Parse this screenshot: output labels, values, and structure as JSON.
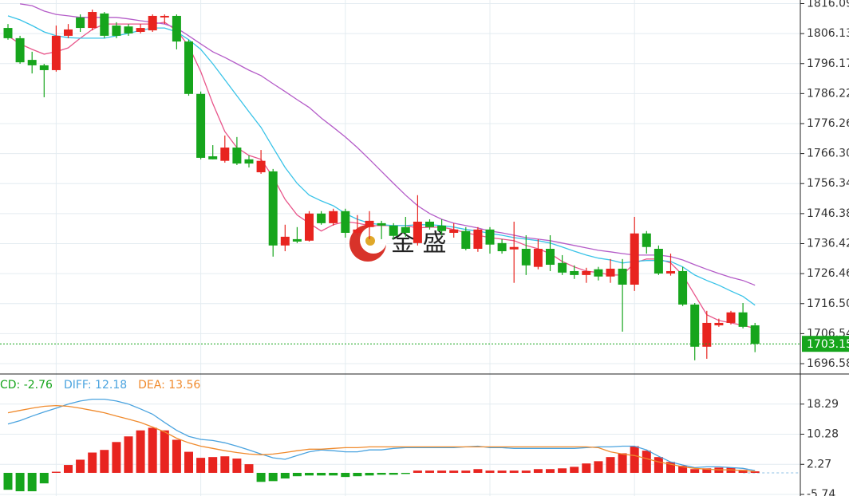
{
  "watermark": "金 盛",
  "chart_data": [
    {
      "type": "candlestick",
      "ylim": [
        1693.41,
        1817.28
      ],
      "yticks": [
        1816.09,
        1806.13,
        1796.17,
        1786.22,
        1776.26,
        {
          "value": 1766.3,
          "label": "1766.30"
        },
        1756.34,
        1746.38,
        1736.42,
        1726.46,
        {
          "value": 1716.5,
          "label": "1716.50"
        },
        1706.54,
        1696.58
      ],
      "grid": true,
      "up_color": "#e8241f",
      "down_color": "#16a51c",
      "last_price": 1703.15,
      "last_price_color": "#16a51c",
      "open": [
        1808.0,
        1804.6,
        1797.4,
        1795.6,
        1794.0,
        1805.4,
        1811.5,
        1808.0,
        1812.8,
        1808.8,
        1808.5,
        1806.7,
        1807.2,
        1811.5,
        1812.0,
        1803.5,
        1786.1,
        1765.4,
        1763.9,
        1768.3,
        1764.4,
        1760.1,
        1760.4,
        1735.8,
        1737.9,
        1737.4,
        1746.4,
        1743.2,
        1747.2,
        1740.0,
        1741.9,
        1743.2,
        1742.4,
        1741.9,
        1736.6,
        1743.7,
        1742.4,
        1740.0,
        1740.6,
        1734.7,
        1741.1,
        1736.6,
        1734.5,
        1734.7,
        1728.7,
        1734.7,
        1730.0,
        1727.3,
        1726.0,
        1727.9,
        1725.5,
        1728.1,
        1722.8,
        1739.8,
        1734.7,
        1726.5,
        1727.3,
        1716.2,
        1702.2,
        1709.3,
        1710.1,
        1713.6,
        1709.3
      ],
      "high": [
        1809.3,
        1805.4,
        1800.1,
        1796.1,
        1808.8,
        1809.3,
        1812.5,
        1814.1,
        1813.3,
        1809.9,
        1809.3,
        1809.3,
        1812.5,
        1812.5,
        1812.5,
        1804.1,
        1786.9,
        1769.1,
        1772.3,
        1771.8,
        1765.7,
        1767.5,
        1761.2,
        1742.7,
        1741.9,
        1747.2,
        1747.2,
        1748.0,
        1748.0,
        1745.9,
        1747.2,
        1744.0,
        1743.2,
        1745.3,
        1752.5,
        1744.5,
        1744.5,
        1743.2,
        1741.9,
        1741.9,
        1741.9,
        1737.9,
        1743.7,
        1739.2,
        1737.9,
        1739.2,
        1732.6,
        1729.2,
        1728.4,
        1728.7,
        1731.3,
        1731.3,
        1745.3,
        1740.6,
        1735.8,
        1733.1,
        1728.7,
        1716.7,
        1714.1,
        1711.5,
        1714.1,
        1716.7,
        1710.1
      ],
      "low": [
        1804.1,
        1796.1,
        1792.9,
        1785.0,
        1793.5,
        1804.6,
        1806.7,
        1807.2,
        1804.6,
        1804.6,
        1805.4,
        1806.2,
        1806.7,
        1809.3,
        1800.9,
        1785.5,
        1764.4,
        1764.4,
        1763.3,
        1762.5,
        1761.7,
        1759.6,
        1732.1,
        1733.9,
        1736.6,
        1737.1,
        1742.7,
        1742.4,
        1738.4,
        1739.2,
        1737.9,
        1737.9,
        1737.9,
        1738.7,
        1735.8,
        1741.1,
        1739.2,
        1738.4,
        1734.2,
        1733.7,
        1733.1,
        1733.1,
        1723.4,
        1726.0,
        1727.9,
        1727.3,
        1726.0,
        1724.7,
        1723.4,
        1724.2,
        1723.4,
        1707.2,
        1720.7,
        1733.1,
        1726.0,
        1725.8,
        1715.7,
        1697.7,
        1698.2,
        1708.8,
        1709.6,
        1708.3,
        1700.4
      ],
      "close": [
        1804.6,
        1796.6,
        1795.6,
        1794.0,
        1805.4,
        1807.5,
        1808.0,
        1813.3,
        1805.4,
        1805.4,
        1806.2,
        1808.0,
        1812.0,
        1812.0,
        1803.5,
        1786.1,
        1764.9,
        1764.4,
        1768.3,
        1763.0,
        1763.0,
        1763.9,
        1735.8,
        1738.7,
        1737.1,
        1746.4,
        1743.2,
        1747.2,
        1740.0,
        1741.1,
        1744.0,
        1742.4,
        1739.0,
        1740.0,
        1743.7,
        1741.9,
        1740.6,
        1741.1,
        1734.7,
        1741.1,
        1736.1,
        1733.9,
        1735.3,
        1729.2,
        1734.7,
        1729.4,
        1726.8,
        1726.0,
        1727.3,
        1725.5,
        1728.1,
        1722.8,
        1739.8,
        1735.3,
        1726.5,
        1727.3,
        1716.2,
        1702.2,
        1710.1,
        1710.1,
        1713.6,
        1708.8,
        1703.15
      ],
      "series": [
        {
          "color": "#e8558a",
          "values": [
            1805.4,
            1802.7,
            1800.9,
            1799.3,
            1800.1,
            1801.4,
            1804.6,
            1807.5,
            1809.3,
            1809.3,
            1809.3,
            1809.3,
            1809.3,
            1809.9,
            1807.2,
            1802.0,
            1793.5,
            1782.9,
            1773.6,
            1768.3,
            1765.7,
            1764.4,
            1758.5,
            1751.1,
            1745.9,
            1743.2,
            1740.6,
            1742.7,
            1743.7,
            1743.2,
            1742.4,
            1742.4,
            1742.4,
            1742.4,
            1741.6,
            1741.9,
            1741.9,
            1741.1,
            1740.0,
            1739.2,
            1738.4,
            1737.9,
            1737.4,
            1735.8,
            1734.7,
            1733.1,
            1730.5,
            1728.7,
            1727.3,
            1726.8,
            1726.0,
            1726.0,
            1730.0,
            1731.3,
            1731.3,
            1730.0,
            1726.0,
            1719.4,
            1712.8,
            1710.9,
            1710.1,
            1709.3,
            1708.3
          ]
        },
        {
          "color": "#39c3e8",
          "values": [
            1812.0,
            1810.7,
            1808.8,
            1806.7,
            1805.4,
            1804.8,
            1804.6,
            1804.6,
            1804.6,
            1805.4,
            1806.2,
            1807.2,
            1808.0,
            1808.0,
            1806.7,
            1804.1,
            1800.9,
            1796.1,
            1790.8,
            1785.5,
            1780.2,
            1775.0,
            1768.3,
            1761.7,
            1756.4,
            1752.5,
            1750.6,
            1749.0,
            1746.4,
            1744.5,
            1743.2,
            1742.7,
            1742.4,
            1742.4,
            1742.7,
            1742.7,
            1742.4,
            1741.9,
            1741.1,
            1740.6,
            1739.8,
            1739.2,
            1738.4,
            1737.9,
            1737.4,
            1736.6,
            1735.3,
            1733.9,
            1732.6,
            1731.6,
            1731.0,
            1730.0,
            1730.5,
            1730.8,
            1730.8,
            1730.5,
            1728.7,
            1726.0,
            1724.2,
            1722.6,
            1720.7,
            1718.9,
            1716.0
          ]
        },
        {
          "color": "#b45cc8",
          "values": [
            null,
            1816.0,
            1815.4,
            1813.6,
            1812.5,
            1812.0,
            1811.5,
            1811.5,
            1811.5,
            1811.5,
            1811.0,
            1810.4,
            1809.9,
            1809.3,
            1808.0,
            1805.4,
            1802.7,
            1800.1,
            1798.2,
            1796.1,
            1794.0,
            1792.2,
            1789.5,
            1786.9,
            1784.2,
            1781.6,
            1778.1,
            1775.0,
            1771.8,
            1768.3,
            1764.4,
            1760.4,
            1756.4,
            1752.5,
            1749.0,
            1746.4,
            1744.5,
            1743.2,
            1742.4,
            1741.6,
            1740.6,
            1740.0,
            1739.2,
            1738.4,
            1737.9,
            1737.4,
            1736.6,
            1735.8,
            1735.0,
            1734.2,
            1733.7,
            1733.1,
            1732.6,
            1732.6,
            1732.6,
            1732.1,
            1731.0,
            1729.4,
            1727.9,
            1726.5,
            1725.2,
            1724.2,
            1722.6
          ]
        }
      ]
    },
    {
      "type": "macd",
      "ylim": [
        -6.16,
        26.09
      ],
      "yticks": [
        18.29,
        10.28,
        2.27,
        -5.74
      ],
      "grid": true,
      "up_color": "#e8241f",
      "down_color": "#16a51c",
      "series": [
        {
          "name": "CD: -2.76",
          "color": "#16a51c",
          "values": [
            -4.5,
            -4.9,
            -4.9,
            -2.8,
            0.3,
            2.1,
            3.5,
            5.4,
            6.1,
            8.2,
            9.7,
            11.3,
            12.0,
            11.3,
            8.8,
            5.6,
            4.0,
            4.2,
            4.4,
            3.8,
            2.3,
            -2.4,
            -2.2,
            -1.5,
            -0.9,
            -0.7,
            -0.7,
            -0.7,
            -1.1,
            -0.9,
            -0.7,
            -0.5,
            -0.5,
            -0.3,
            0.6,
            0.6,
            0.6,
            0.6,
            0.6,
            1.0,
            0.6,
            0.6,
            0.6,
            0.6,
            1.0,
            1.0,
            1.2,
            1.6,
            2.5,
            3.1,
            4.2,
            5.2,
            7.1,
            5.9,
            4.2,
            2.9,
            1.9,
            1.0,
            1.2,
            1.4,
            1.4,
            0.8,
            0.4
          ]
        },
        {
          "name": "DIFF: 12.18",
          "color": "#4aa3df",
          "values": [
            13.0,
            13.9,
            15.1,
            16.2,
            17.2,
            18.3,
            19.1,
            19.6,
            19.6,
            19.1,
            18.3,
            17.0,
            15.6,
            13.4,
            11.3,
            9.7,
            8.9,
            8.6,
            8.0,
            7.1,
            6.1,
            5.0,
            4.0,
            3.6,
            4.6,
            5.6,
            6.1,
            5.9,
            5.6,
            5.6,
            6.1,
            6.1,
            6.5,
            6.7,
            6.7,
            6.7,
            6.7,
            6.7,
            6.9,
            7.1,
            6.7,
            6.7,
            6.5,
            6.5,
            6.5,
            6.5,
            6.5,
            6.5,
            6.7,
            6.9,
            6.9,
            7.1,
            7.1,
            6.1,
            4.4,
            2.9,
            2.1,
            1.4,
            1.6,
            1.6,
            1.4,
            1.2,
            0.6
          ]
        },
        {
          "name": "DEA: 13.56",
          "color": "#f08a2c",
          "values": [
            16.0,
            16.6,
            17.2,
            17.7,
            17.9,
            17.7,
            17.2,
            16.6,
            16.0,
            15.1,
            14.3,
            13.4,
            12.2,
            10.9,
            9.2,
            8.0,
            7.1,
            6.5,
            5.9,
            5.4,
            5.0,
            4.8,
            5.0,
            5.4,
            5.9,
            6.3,
            6.3,
            6.5,
            6.7,
            6.7,
            6.9,
            6.9,
            6.9,
            6.9,
            6.9,
            6.9,
            6.9,
            6.9,
            6.9,
            6.9,
            6.9,
            6.9,
            6.9,
            6.9,
            6.9,
            6.9,
            6.9,
            6.9,
            6.9,
            6.7,
            5.6,
            5.0,
            4.6,
            3.8,
            2.9,
            2.3,
            1.6,
            1.2,
            1.0,
            0.8,
            0.8,
            0.6,
            0.4
          ]
        }
      ]
    }
  ]
}
